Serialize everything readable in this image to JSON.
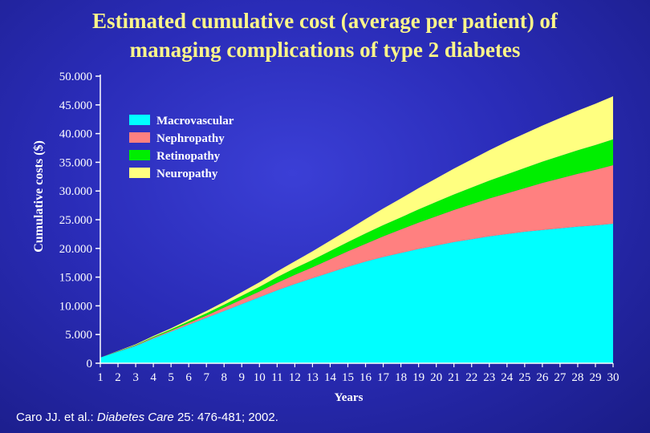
{
  "title_line1": "Estimated cumulative cost (average per patient) of",
  "title_line2": "managing complications of type 2 diabetes",
  "citation": {
    "authors": "Caro JJ. et al.:",
    "journal": "Diabetes Care",
    "details": "25: 476-481; 2002."
  },
  "colors": {
    "background": "#2a2cb8",
    "title": "#fbf58a",
    "Macrovascular": "#00ffff",
    "Nephropathy": "#ff8080",
    "Retinopathy": "#00ee00",
    "Neuropathy": "#ffff80"
  },
  "chart_data": {
    "type": "area",
    "stacked": true,
    "xlabel": "Years",
    "ylabel": "Cumulative costs ($)",
    "x": [
      1,
      2,
      3,
      4,
      5,
      6,
      7,
      8,
      9,
      10,
      11,
      12,
      13,
      14,
      15,
      16,
      17,
      18,
      19,
      20,
      21,
      22,
      23,
      24,
      25,
      26,
      27,
      28,
      29,
      30
    ],
    "xlim": [
      1,
      30
    ],
    "ylim": [
      0,
      50000
    ],
    "y_ticks": [
      "0",
      "5.000",
      "10.000",
      "15.000",
      "20.000",
      "25.000",
      "30.000",
      "35.000",
      "40.000",
      "45.000",
      "50.000"
    ],
    "y_tick_values": [
      0,
      5000,
      10000,
      15000,
      20000,
      25000,
      30000,
      35000,
      40000,
      45000,
      50000
    ],
    "legend_position": "top-left",
    "series": [
      {
        "name": "Macrovascular",
        "values": [
          1000,
          2000,
          3000,
          4300,
          5500,
          6700,
          7900,
          9100,
          10300,
          11500,
          12700,
          13800,
          14800,
          15800,
          16800,
          17700,
          18500,
          19200,
          19900,
          20500,
          21100,
          21600,
          22100,
          22500,
          22900,
          23200,
          23500,
          23800,
          24000,
          24300
        ]
      },
      {
        "name": "Nephropathy",
        "values": [
          0,
          50,
          100,
          150,
          200,
          300,
          400,
          600,
          800,
          1000,
          1300,
          1600,
          1900,
          2300,
          2700,
          3100,
          3600,
          4100,
          4600,
          5100,
          5600,
          6100,
          6600,
          7100,
          7600,
          8200,
          8700,
          9200,
          9700,
          10200
        ]
      },
      {
        "name": "Retinopathy",
        "values": [
          0,
          50,
          100,
          150,
          200,
          300,
          400,
          500,
          650,
          800,
          1000,
          1150,
          1300,
          1450,
          1600,
          1800,
          1950,
          2100,
          2300,
          2500,
          2700,
          2900,
          3100,
          3300,
          3500,
          3700,
          3900,
          4100,
          4300,
          4500
        ]
      },
      {
        "name": "Neuropathy",
        "values": [
          0,
          50,
          100,
          150,
          200,
          300,
          400,
          500,
          650,
          800,
          1000,
          1200,
          1500,
          1800,
          2100,
          2500,
          2900,
          3300,
          3700,
          4100,
          4500,
          4900,
          5300,
          5700,
          6000,
          6300,
          6600,
          6900,
          7200,
          7500
        ]
      }
    ]
  }
}
